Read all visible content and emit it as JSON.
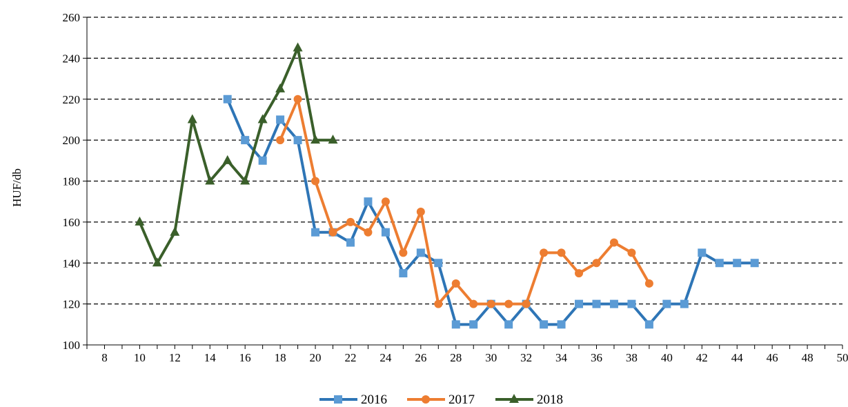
{
  "chart_data": {
    "type": "line",
    "title": "",
    "xlabel": "",
    "ylabel": "HUF/db",
    "xlim": [
      7,
      50
    ],
    "ylim": [
      100,
      260
    ],
    "x_ticks": [
      8,
      10,
      12,
      14,
      16,
      18,
      20,
      22,
      24,
      26,
      28,
      30,
      32,
      34,
      36,
      38,
      40,
      42,
      44,
      46,
      48,
      50
    ],
    "y_ticks": [
      100,
      120,
      140,
      160,
      180,
      200,
      220,
      240,
      260
    ],
    "grid": "horizontal dashed",
    "legend_position": "bottom",
    "series": [
      {
        "name": "2016",
        "color": "#2E75B6",
        "marker_color": "#5B9BD5",
        "marker": "square",
        "points": [
          [
            15,
            220
          ],
          [
            16,
            200
          ],
          [
            17,
            190
          ],
          [
            18,
            210
          ],
          [
            19,
            200
          ],
          [
            20,
            155
          ],
          [
            21,
            155
          ],
          [
            22,
            150
          ],
          [
            23,
            170
          ],
          [
            24,
            155
          ],
          [
            25,
            135
          ],
          [
            26,
            145
          ],
          [
            27,
            140
          ],
          [
            28,
            110
          ],
          [
            29,
            110
          ],
          [
            30,
            120
          ],
          [
            31,
            110
          ],
          [
            32,
            120
          ],
          [
            33,
            110
          ],
          [
            34,
            110
          ],
          [
            35,
            120
          ],
          [
            36,
            120
          ],
          [
            37,
            120
          ],
          [
            38,
            120
          ],
          [
            39,
            110
          ],
          [
            40,
            120
          ],
          [
            41,
            120
          ],
          [
            42,
            145
          ],
          [
            43,
            140
          ],
          [
            44,
            140
          ],
          [
            45,
            140
          ]
        ]
      },
      {
        "name": "2017",
        "color": "#ED7D31",
        "marker_color": "#ED7D31",
        "marker": "circle",
        "points": [
          [
            18,
            200
          ],
          [
            19,
            220
          ],
          [
            20,
            180
          ],
          [
            21,
            155
          ],
          [
            22,
            160
          ],
          [
            23,
            155
          ],
          [
            24,
            170
          ],
          [
            25,
            145
          ],
          [
            26,
            165
          ],
          [
            27,
            120
          ],
          [
            28,
            130
          ],
          [
            29,
            120
          ],
          [
            30,
            120
          ],
          [
            31,
            120
          ],
          [
            32,
            120
          ],
          [
            33,
            145
          ],
          [
            34,
            145
          ],
          [
            35,
            135
          ],
          [
            36,
            140
          ],
          [
            37,
            150
          ],
          [
            38,
            145
          ],
          [
            39,
            130
          ]
        ]
      },
      {
        "name": "2018",
        "color": "#3A5F2A",
        "marker_color": "#3A5F2A",
        "marker": "triangle",
        "points": [
          [
            10,
            160
          ],
          [
            11,
            140
          ],
          [
            12,
            155
          ],
          [
            13,
            210
          ],
          [
            14,
            180
          ],
          [
            15,
            190
          ],
          [
            16,
            180
          ],
          [
            17,
            210
          ],
          [
            18,
            225
          ],
          [
            19,
            245
          ],
          [
            20,
            200
          ],
          [
            21,
            200
          ]
        ]
      }
    ]
  }
}
